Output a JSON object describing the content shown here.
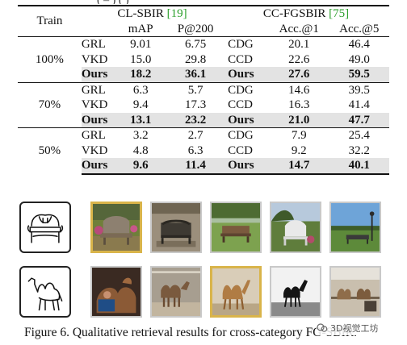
{
  "top_fragment": "( –     )                (     )",
  "table": {
    "train_header": "Train",
    "cl_title": "CL-SBIR",
    "cl_cite": "[19]",
    "cc_title": "CC-FGSBIR",
    "cc_cite": "[75]",
    "cl_cols": [
      "mAP",
      "P@200"
    ],
    "cc_cols": [
      "Acc.@1",
      "Acc.@5"
    ],
    "groups": [
      {
        "train": "100%",
        "rows": [
          {
            "m1": "GRL",
            "v1": "9.01",
            "v2": "6.75",
            "m2": "CDG",
            "v3": "20.1",
            "v4": "46.4"
          },
          {
            "m1": "VKD",
            "v1": "15.0",
            "v2": "29.8",
            "m2": "CCD",
            "v3": "22.6",
            "v4": "49.0"
          },
          {
            "m1": "Ours",
            "v1": "18.2",
            "v2": "36.1",
            "m2": "Ours",
            "v3": "27.6",
            "v4": "59.5"
          }
        ]
      },
      {
        "train": "70%",
        "rows": [
          {
            "m1": "GRL",
            "v1": "6.3",
            "v2": "5.7",
            "m2": "CDG",
            "v3": "14.6",
            "v4": "39.5"
          },
          {
            "m1": "VKD",
            "v1": "9.4",
            "v2": "17.3",
            "m2": "CCD",
            "v3": "16.3",
            "v4": "41.4"
          },
          {
            "m1": "Ours",
            "v1": "13.1",
            "v2": "23.2",
            "m2": "Ours",
            "v3": "21.0",
            "v4": "47.7"
          }
        ]
      },
      {
        "train": "50%",
        "rows": [
          {
            "m1": "GRL",
            "v1": "3.2",
            "v2": "2.7",
            "m2": "CDG",
            "v3": "7.9",
            "v4": "25.4"
          },
          {
            "m1": "VKD",
            "v1": "4.8",
            "v2": "6.3",
            "m2": "CCD",
            "v3": "9.2",
            "v4": "32.2"
          },
          {
            "m1": "Ours",
            "v1": "9.6",
            "v2": "11.4",
            "m2": "Ours",
            "v3": "14.7",
            "v4": "40.1"
          }
        ]
      }
    ]
  },
  "figure": {
    "caption": "Figure 6. Qualitative retrieval results for cross-category FG-SBIR.",
    "rows": [
      {
        "query": "sketch-bench",
        "results": [
          "photo-bench-1",
          "photo-bench-2",
          "photo-bench-3",
          "photo-bench-4",
          "photo-bench-5"
        ],
        "matched_index": 0
      },
      {
        "query": "sketch-camel",
        "results": [
          "photo-camel-1",
          "photo-camel-2",
          "photo-camel-3",
          "photo-camel-4",
          "photo-camel-5"
        ],
        "matched_index": 2
      }
    ],
    "colors": {
      "match_border": "#d9b44a",
      "other_border": "#c9c9c9",
      "highlight_row": "#e3e3e3"
    }
  },
  "watermark": {
    "text": "3D视觉工坊"
  }
}
